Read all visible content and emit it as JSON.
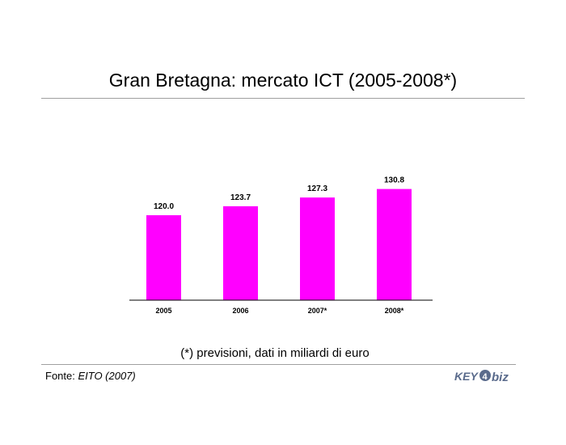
{
  "page": {
    "title": "Gran Bretagna: mercato ICT (2005-2008*)",
    "note": "(*) previsioni, dati in miliardi di euro",
    "source_label": "Fonte: ",
    "source_value": "EITO (2007)",
    "logo_text_left": "KEY",
    "logo_text_mid": "4",
    "logo_text_right": "biz"
  },
  "colors": {
    "bar": "#ff00ff",
    "axis": "#000000",
    "rule": "#a0a0a0",
    "logo": "#5a6b8c"
  },
  "chart_data": {
    "type": "bar",
    "title": "Gran Bretagna: mercato ICT (2005-2008*)",
    "categories": [
      "2005",
      "2006",
      "2007*",
      "2008*"
    ],
    "values": [
      120.0,
      123.7,
      127.3,
      130.8
    ],
    "value_labels": [
      "120.0",
      "123.7",
      "127.3",
      "130.8"
    ],
    "xlabel": "",
    "ylabel": "",
    "ylim": [
      85,
      135
    ],
    "grid": false,
    "legend": "none"
  }
}
